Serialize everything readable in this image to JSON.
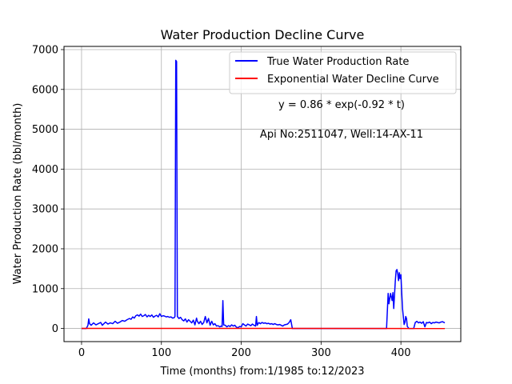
{
  "chart_data": {
    "type": "line",
    "title": "Water Production Decline Curve",
    "xlabel": "Time (months) from:1/1985 to:12/2023",
    "ylabel": "Water Production Rate (bbl/month)",
    "xlim": [
      -22,
      475
    ],
    "ylim": [
      -330,
      7080
    ],
    "xticks": [
      0,
      100,
      200,
      300,
      400
    ],
    "yticks": [
      0,
      1000,
      2000,
      3000,
      4000,
      5000,
      6000,
      7000
    ],
    "grid": true,
    "legend_position": "top-right",
    "annotations": [
      "y = 0.86 * exp(-0.92 * t)",
      "Api No:2511047, Well:14-AX-11"
    ],
    "series": [
      {
        "name": "True Water Production Rate",
        "color": "#0000ff",
        "points": [
          [
            0,
            0
          ],
          [
            6,
            0
          ],
          [
            8,
            80
          ],
          [
            9,
            240
          ],
          [
            10,
            120
          ],
          [
            12,
            80
          ],
          [
            15,
            140
          ],
          [
            18,
            90
          ],
          [
            21,
            120
          ],
          [
            24,
            150
          ],
          [
            26,
            80
          ],
          [
            28,
            120
          ],
          [
            30,
            160
          ],
          [
            33,
            110
          ],
          [
            36,
            140
          ],
          [
            39,
            120
          ],
          [
            42,
            180
          ],
          [
            45,
            130
          ],
          [
            48,
            160
          ],
          [
            51,
            200
          ],
          [
            54,
            180
          ],
          [
            57,
            220
          ],
          [
            60,
            250
          ],
          [
            62,
            230
          ],
          [
            64,
            290
          ],
          [
            66,
            260
          ],
          [
            68,
            320
          ],
          [
            70,
            340
          ],
          [
            72,
            310
          ],
          [
            74,
            360
          ],
          [
            76,
            300
          ],
          [
            78,
            320
          ],
          [
            80,
            350
          ],
          [
            82,
            290
          ],
          [
            84,
            330
          ],
          [
            86,
            300
          ],
          [
            88,
            340
          ],
          [
            90,
            280
          ],
          [
            92,
            310
          ],
          [
            94,
            330
          ],
          [
            96,
            290
          ],
          [
            98,
            370
          ],
          [
            100,
            300
          ],
          [
            102,
            320
          ],
          [
            104,
            310
          ],
          [
            106,
            290
          ],
          [
            108,
            300
          ],
          [
            110,
            280
          ],
          [
            112,
            290
          ],
          [
            114,
            260
          ],
          [
            116,
            270
          ],
          [
            117,
            300
          ],
          [
            118,
            6730
          ],
          [
            119,
            6700
          ],
          [
            120,
            300
          ],
          [
            122,
            250
          ],
          [
            124,
            280
          ],
          [
            126,
            220
          ],
          [
            128,
            190
          ],
          [
            130,
            240
          ],
          [
            132,
            160
          ],
          [
            134,
            220
          ],
          [
            136,
            180
          ],
          [
            138,
            140
          ],
          [
            140,
            210
          ],
          [
            142,
            90
          ],
          [
            144,
            260
          ],
          [
            145,
            180
          ],
          [
            147,
            120
          ],
          [
            149,
            180
          ],
          [
            151,
            100
          ],
          [
            153,
            150
          ],
          [
            155,
            300
          ],
          [
            157,
            140
          ],
          [
            159,
            250
          ],
          [
            161,
            80
          ],
          [
            163,
            180
          ],
          [
            165,
            90
          ],
          [
            167,
            120
          ],
          [
            169,
            60
          ],
          [
            171,
            70
          ],
          [
            173,
            40
          ],
          [
            175,
            60
          ],
          [
            176,
            50
          ],
          [
            177,
            700
          ],
          [
            178,
            90
          ],
          [
            180,
            80
          ],
          [
            182,
            40
          ],
          [
            184,
            70
          ],
          [
            186,
            50
          ],
          [
            188,
            90
          ],
          [
            190,
            60
          ],
          [
            192,
            80
          ],
          [
            194,
            30
          ],
          [
            196,
            20
          ],
          [
            198,
            50
          ],
          [
            200,
            40
          ],
          [
            202,
            120
          ],
          [
            204,
            90
          ],
          [
            206,
            60
          ],
          [
            208,
            110
          ],
          [
            210,
            90
          ],
          [
            212,
            70
          ],
          [
            214,
            110
          ],
          [
            216,
            80
          ],
          [
            218,
            60
          ],
          [
            219,
            300
          ],
          [
            220,
            80
          ],
          [
            222,
            150
          ],
          [
            224,
            120
          ],
          [
            226,
            150
          ],
          [
            228,
            130
          ],
          [
            230,
            140
          ],
          [
            232,
            120
          ],
          [
            234,
            130
          ],
          [
            236,
            110
          ],
          [
            238,
            120
          ],
          [
            240,
            100
          ],
          [
            242,
            120
          ],
          [
            244,
            100
          ],
          [
            246,
            90
          ],
          [
            248,
            100
          ],
          [
            250,
            80
          ],
          [
            252,
            60
          ],
          [
            254,
            90
          ],
          [
            256,
            100
          ],
          [
            258,
            110
          ],
          [
            260,
            150
          ],
          [
            262,
            220
          ],
          [
            264,
            0
          ],
          [
            270,
            0
          ],
          [
            300,
            0
          ],
          [
            330,
            0
          ],
          [
            360,
            0
          ],
          [
            382,
            0
          ],
          [
            384,
            880
          ],
          [
            385,
            620
          ],
          [
            387,
            880
          ],
          [
            389,
            700
          ],
          [
            390,
            900
          ],
          [
            391,
            500
          ],
          [
            393,
            1200
          ],
          [
            394,
            1450
          ],
          [
            395,
            1480
          ],
          [
            396,
            1380
          ],
          [
            397,
            1200
          ],
          [
            398,
            1400
          ],
          [
            399,
            1250
          ],
          [
            400,
            1350
          ],
          [
            401,
            900
          ],
          [
            402,
            500
          ],
          [
            403,
            300
          ],
          [
            404,
            100
          ],
          [
            405,
            150
          ],
          [
            406,
            300
          ],
          [
            407,
            250
          ],
          [
            408,
            50
          ],
          [
            410,
            0
          ],
          [
            416,
            0
          ],
          [
            418,
            150
          ],
          [
            420,
            180
          ],
          [
            422,
            140
          ],
          [
            424,
            160
          ],
          [
            426,
            130
          ],
          [
            428,
            170
          ],
          [
            430,
            40
          ],
          [
            432,
            150
          ],
          [
            434,
            140
          ],
          [
            436,
            160
          ],
          [
            438,
            120
          ],
          [
            440,
            150
          ],
          [
            442,
            140
          ],
          [
            444,
            160
          ],
          [
            446,
            150
          ],
          [
            448,
            140
          ],
          [
            450,
            160
          ],
          [
            452,
            170
          ],
          [
            454,
            150
          ],
          [
            455,
            140
          ]
        ]
      },
      {
        "name": "Exponential Water Decline Curve",
        "color": "#ff0000",
        "points": [
          [
            0,
            0.86
          ],
          [
            455,
            0
          ]
        ]
      }
    ]
  }
}
